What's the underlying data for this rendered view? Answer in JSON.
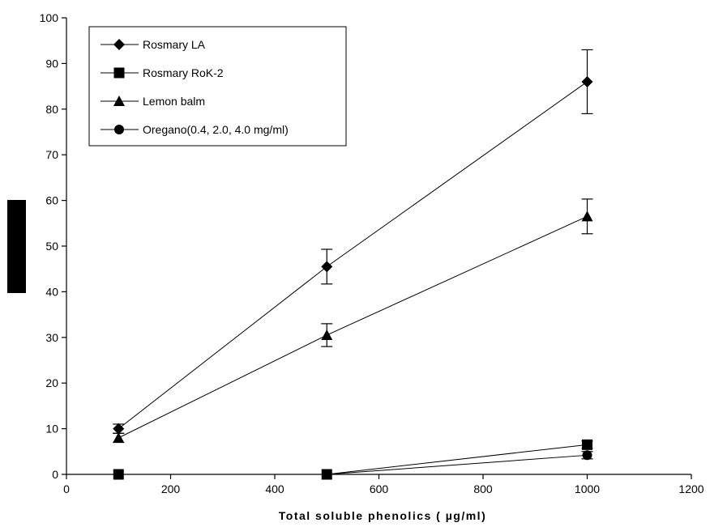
{
  "chart_data": {
    "type": "line",
    "title": "",
    "xlabel": "Total soluble phenolics ( µg/ml)",
    "ylabel": "",
    "xlim": [
      0,
      1200
    ],
    "ylim": [
      0,
      100
    ],
    "x_ticks": [
      0,
      200,
      400,
      600,
      800,
      1000,
      1200
    ],
    "y_ticks": [
      0,
      10,
      20,
      30,
      40,
      50,
      60,
      70,
      80,
      90,
      100
    ],
    "grid": false,
    "legend_position": "top-left",
    "series": [
      {
        "name": "Rosmary LA",
        "marker": "diamond",
        "color": "#000000",
        "x": [
          100,
          500,
          1000
        ],
        "y": [
          10,
          45.5,
          86
        ],
        "err": [
          1,
          3.8,
          7
        ]
      },
      {
        "name": "Rosmary RoK-2",
        "marker": "square",
        "color": "#000000",
        "x": [
          100,
          500,
          1000
        ],
        "y": [
          0,
          0,
          6.5
        ],
        "err": [
          0,
          0,
          0.8
        ]
      },
      {
        "name": "Lemon balm",
        "marker": "triangle",
        "color": "#000000",
        "x": [
          100,
          500,
          1000
        ],
        "y": [
          8,
          30.5,
          56.5
        ],
        "err": [
          1,
          2.5,
          3.8
        ]
      },
      {
        "name": "Oregano(0.4, 2.0, 4.0 mg/ml)",
        "marker": "circle",
        "color": "#000000",
        "x": [
          100,
          500,
          1000
        ],
        "y": [
          0,
          0,
          4.2
        ],
        "err": [
          0,
          0,
          0.8
        ]
      }
    ]
  }
}
